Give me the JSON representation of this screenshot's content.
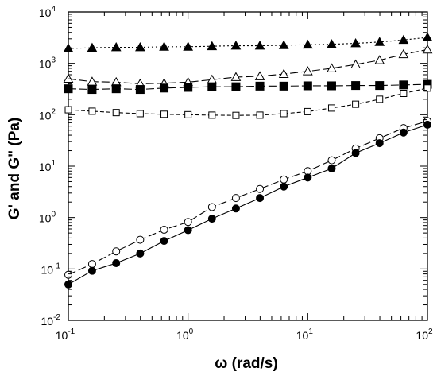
{
  "chart_data": {
    "type": "line",
    "xlabel_symbol": "ω",
    "xlabel_rest": " (rad/s)",
    "ylabel": "G' and G\" (Pa)",
    "x_scale": "log",
    "y_scale": "log",
    "xlim": [
      0.1,
      100
    ],
    "ylim": [
      0.01,
      10000
    ],
    "x_ticks": [
      {
        "base": "10",
        "exp": "-1"
      },
      {
        "base": "10",
        "exp": "0"
      },
      {
        "base": "10",
        "exp": "1"
      },
      {
        "base": "10",
        "exp": "2"
      }
    ],
    "y_ticks": [
      {
        "base": "10",
        "exp": "-2"
      },
      {
        "base": "10",
        "exp": "-1"
      },
      {
        "base": "10",
        "exp": "0"
      },
      {
        "base": "10",
        "exp": "1"
      },
      {
        "base": "10",
        "exp": "2"
      },
      {
        "base": "10",
        "exp": "3"
      },
      {
        "base": "10",
        "exp": "4"
      }
    ],
    "grid": false,
    "legend": "none",
    "x": [
      0.1,
      0.158,
      0.251,
      0.398,
      0.631,
      1.0,
      1.585,
      2.512,
      3.981,
      6.31,
      10.0,
      15.85,
      25.12,
      39.81,
      63.1,
      100.0
    ],
    "series": [
      {
        "marker": "triangle",
        "filled": true,
        "line": "dotted",
        "values": [
          1950,
          2000,
          2050,
          2050,
          2100,
          2100,
          2150,
          2200,
          2200,
          2250,
          2300,
          2350,
          2450,
          2600,
          2850,
          3200
        ]
      },
      {
        "marker": "triangle",
        "filled": false,
        "line": "long-dash",
        "values": [
          500,
          440,
          430,
          400,
          410,
          430,
          480,
          540,
          560,
          620,
          700,
          800,
          950,
          1150,
          1500,
          1850
        ]
      },
      {
        "marker": "square",
        "filled": true,
        "line": "long-dash",
        "values": [
          320,
          310,
          320,
          310,
          330,
          340,
          350,
          350,
          360,
          360,
          365,
          365,
          370,
          370,
          380,
          390
        ]
      },
      {
        "marker": "square",
        "filled": false,
        "line": "short-dash",
        "values": [
          125,
          117,
          110,
          105,
          102,
          100,
          98,
          97,
          98,
          105,
          115,
          135,
          160,
          200,
          260,
          330
        ]
      },
      {
        "marker": "circle",
        "filled": false,
        "line": "long-dash",
        "values": [
          0.077,
          0.125,
          0.22,
          0.37,
          0.58,
          0.82,
          1.6,
          2.4,
          3.6,
          5.5,
          8.0,
          13.0,
          22.0,
          35.0,
          55.0,
          75.0
        ]
      },
      {
        "marker": "circle",
        "filled": true,
        "line": "solid",
        "values": [
          0.05,
          0.092,
          0.13,
          0.2,
          0.35,
          0.57,
          0.95,
          1.5,
          2.4,
          4.0,
          6.0,
          9.0,
          18.0,
          28.0,
          45.0,
          64.0
        ]
      }
    ]
  }
}
